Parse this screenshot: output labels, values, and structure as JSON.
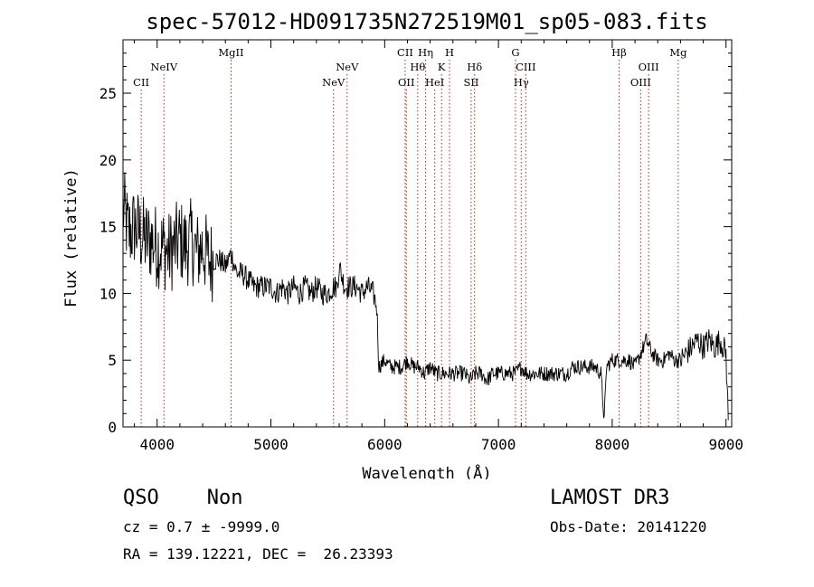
{
  "chart_data": {
    "type": "line",
    "title": "spec-57012-HD091735N272519M01_sp05-083.fits",
    "xlabel": "Wavelength (Å)",
    "ylabel": "Flux (relative)",
    "xlim": [
      3700,
      9050
    ],
    "ylim": [
      0,
      29
    ],
    "x_ticks": [
      4000,
      5000,
      6000,
      7000,
      8000,
      9000
    ],
    "y_ticks": [
      0,
      5,
      10,
      15,
      20,
      25
    ],
    "grid": false,
    "series": [
      {
        "x": [
          3700,
          3750,
          3800,
          3850,
          3900,
          3950,
          4000,
          4050,
          4100,
          4150,
          4200,
          4250,
          4300,
          4350,
          4400,
          4450,
          4500,
          4550,
          4600,
          4650,
          4700,
          4750,
          4800,
          4850,
          4900,
          4950,
          5000,
          5050,
          5100,
          5150,
          5200,
          5250,
          5300,
          5350,
          5400,
          5450,
          5500,
          5550,
          5580,
          5600,
          5650,
          5700,
          5750,
          5800,
          5850,
          5900,
          5930,
          5950,
          6000,
          6050,
          6100,
          6150,
          6200,
          6250,
          6300,
          6350,
          6400,
          6450,
          6500,
          6550,
          6600,
          6650,
          6700,
          6750,
          6800,
          6850,
          6900,
          6950,
          7000,
          7050,
          7100,
          7150,
          7200,
          7250,
          7300,
          7350,
          7400,
          7450,
          7500,
          7550,
          7600,
          7650,
          7700,
          7750,
          7800,
          7850,
          7900,
          7930,
          7950,
          8000,
          8050,
          8100,
          8150,
          8200,
          8250,
          8300,
          8350,
          8400,
          8450,
          8500,
          8550,
          8600,
          8650,
          8700,
          8750,
          8800,
          8850,
          8900,
          8950,
          9000,
          9020
        ],
        "y": [
          16.5,
          14.5,
          15.0,
          14.5,
          14.0,
          14.0,
          13.5,
          13.5,
          13.0,
          13.5,
          14.0,
          13.5,
          14.0,
          13.0,
          13.5,
          12.5,
          12.5,
          12.5,
          12.0,
          13.0,
          11.5,
          11.5,
          11.0,
          10.5,
          10.5,
          10.5,
          10.5,
          10.0,
          10.5,
          10.0,
          10.5,
          10.0,
          10.5,
          10.0,
          10.5,
          10.0,
          10.0,
          10.5,
          10.5,
          12.0,
          10.5,
          10.5,
          10.5,
          10.0,
          10.5,
          10.0,
          9.0,
          4.5,
          5.0,
          4.5,
          4.5,
          4.5,
          5.0,
          4.5,
          4.5,
          4.0,
          4.5,
          4.0,
          4.0,
          4.0,
          4.0,
          4.0,
          4.0,
          3.5,
          4.0,
          4.0,
          3.5,
          4.0,
          4.0,
          4.0,
          4.0,
          4.0,
          4.5,
          4.0,
          4.0,
          4.0,
          4.0,
          4.0,
          4.0,
          4.0,
          4.0,
          4.5,
          4.5,
          4.5,
          4.5,
          4.5,
          4.0,
          0.5,
          4.5,
          5.0,
          5.0,
          5.0,
          5.0,
          4.5,
          5.5,
          6.5,
          5.5,
          5.0,
          5.0,
          5.5,
          5.0,
          5.0,
          5.5,
          6.0,
          6.5,
          6.0,
          6.5,
          6.0,
          6.5,
          5.5,
          0.5
        ]
      }
    ],
    "lines": [
      {
        "label": "CII",
        "x": 3860,
        "row": 3
      },
      {
        "label": "NeIV",
        "x": 4060,
        "row": 2
      },
      {
        "label": "MgII",
        "x": 4650,
        "row": 1
      },
      {
        "label": "NeV",
        "x": 5550,
        "row": 3
      },
      {
        "label": "NeV",
        "x": 5670,
        "row": 2
      },
      {
        "label": "CII",
        "x": 6180,
        "row": 1
      },
      {
        "label": "OII",
        "x": 6190,
        "row": 3
      },
      {
        "label": "Hθ",
        "x": 6290,
        "row": 2
      },
      {
        "label": "Hη",
        "x": 6360,
        "row": 1
      },
      {
        "label": "HeI",
        "x": 6440,
        "row": 3
      },
      {
        "label": "K",
        "x": 6500,
        "row": 2
      },
      {
        "label": "H",
        "x": 6570,
        "row": 1
      },
      {
        "label": "SII",
        "x": 6760,
        "row": 3
      },
      {
        "label": "Hδ",
        "x": 6790,
        "row": 2
      },
      {
        "label": "G",
        "x": 7150,
        "row": 1
      },
      {
        "label": "Hγ",
        "x": 7200,
        "row": 3
      },
      {
        "label": "CIII",
        "x": 7240,
        "row": 2
      },
      {
        "label": "Hβ",
        "x": 8060,
        "row": 1
      },
      {
        "label": "OIII",
        "x": 8250,
        "row": 3
      },
      {
        "label": "OIII",
        "x": 8320,
        "row": 2
      },
      {
        "label": "Mg",
        "x": 8580,
        "row": 1
      }
    ]
  },
  "info": {
    "class_label": "QSO    Non",
    "survey": "LAMOST DR3",
    "cz": "cz = 0.7 ± -9999.0",
    "obs_date": "Obs-Date: 20141220",
    "coords": "RA = 139.12221, DEC =  26.23393"
  }
}
